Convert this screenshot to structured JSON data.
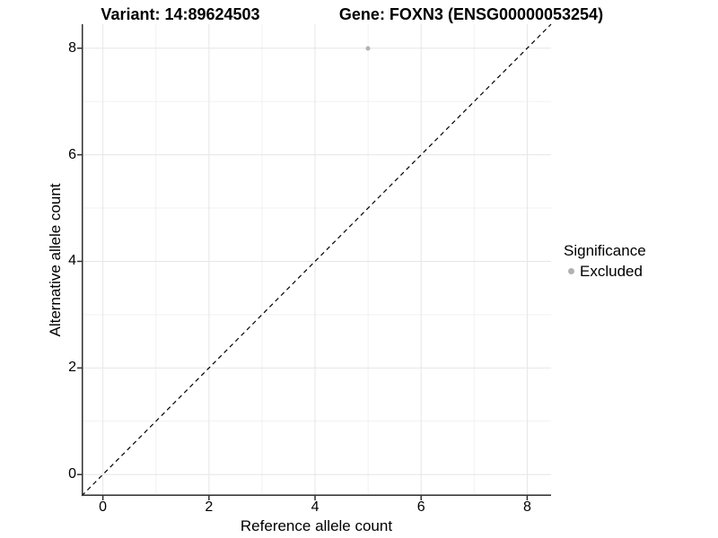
{
  "titles": {
    "variant": "Variant: 14:89624503",
    "gene": "Gene: FOXN3 (ENSG00000053254)"
  },
  "chart_data": {
    "type": "scatter",
    "xlabel": "Reference allele count",
    "ylabel": "Alternative allele count",
    "xlim": [
      -0.4,
      8.45
    ],
    "ylim": [
      -0.4,
      8.45
    ],
    "xticks": [
      0,
      2,
      4,
      6,
      8
    ],
    "yticks": [
      0,
      2,
      4,
      6,
      8
    ],
    "minor_xticks": [
      1,
      3,
      5,
      7
    ],
    "minor_yticks": [
      1,
      3,
      5,
      7
    ],
    "grid": "major and minor gridlines on white background",
    "series": [
      {
        "name": "Excluded",
        "color": "#b2b2b2",
        "points": [
          {
            "x": 5,
            "y": 8
          }
        ]
      }
    ],
    "identity_line": {
      "equation": "y = x",
      "style": "dashed",
      "color": "#000000"
    },
    "legend": {
      "title": "Significance",
      "position": "right",
      "entries": [
        {
          "label": "Excluded",
          "color": "#b2b2b2"
        }
      ]
    }
  },
  "colors": {
    "major_grid": "#e6e6e6",
    "minor_grid": "#f1f1f1",
    "axis_line": "#2e2e2e",
    "point": "#b2b2b2"
  }
}
